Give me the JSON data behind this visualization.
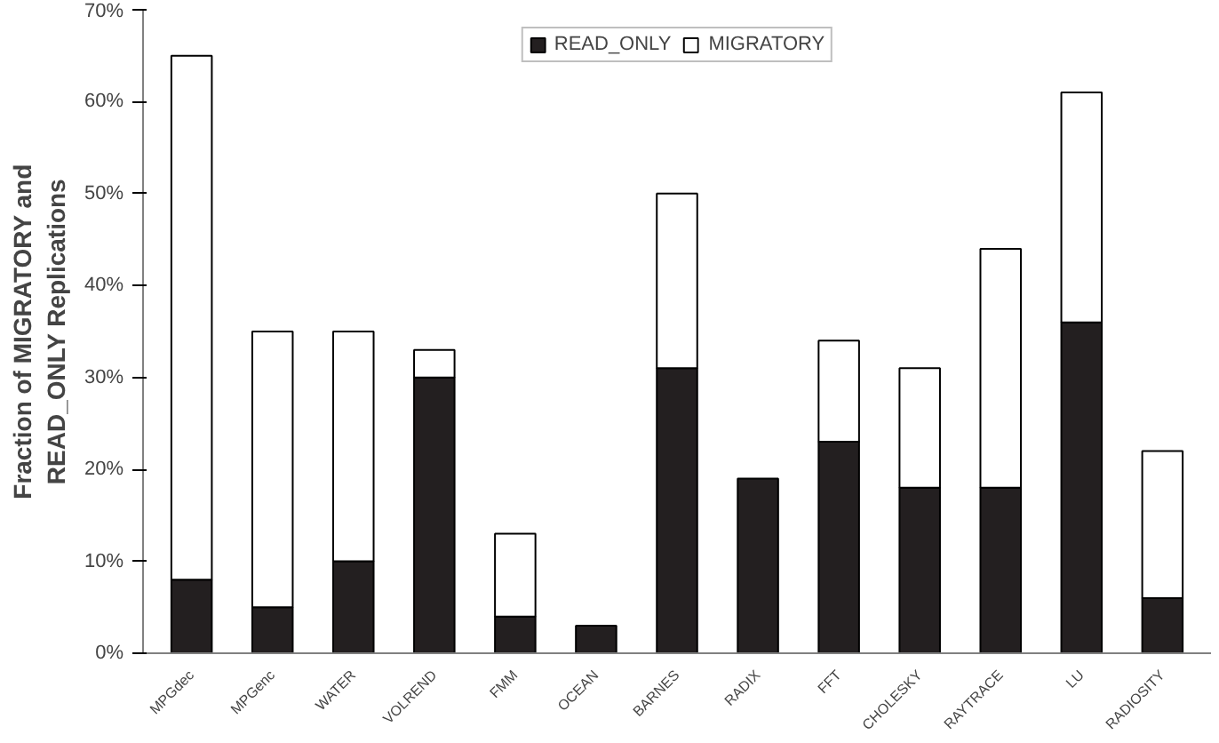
{
  "chart_data": {
    "type": "bar",
    "stacked": true,
    "ylabel": "Fraction of MIGRATORY and READ_ONLY Replications",
    "categories": [
      "MPGdec",
      "MPGenc",
      "WATER",
      "VOLREND",
      "FMM",
      "OCEAN",
      "BARNES",
      "RADIX",
      "FFT",
      "CHOLESKY",
      "RAYTRACE",
      "LU",
      "RADIOSITY"
    ],
    "series": [
      {
        "name": "READ_ONLY",
        "color": "#231f20",
        "values": [
          8,
          5,
          10,
          30,
          4,
          3,
          31,
          19,
          23,
          18,
          18,
          36,
          6
        ]
      },
      {
        "name": "MIGRATORY",
        "color": "#ffffff",
        "values": [
          57,
          30,
          25,
          3,
          9,
          0,
          19,
          0,
          11,
          13,
          26,
          25,
          16
        ]
      }
    ],
    "ylim": [
      0,
      70
    ],
    "yticks": [
      {
        "value": 0,
        "label": "0%"
      },
      {
        "value": 10,
        "label": "10%"
      },
      {
        "value": 20,
        "label": "20%"
      },
      {
        "value": 30,
        "label": "30%"
      },
      {
        "value": 40,
        "label": "40%"
      },
      {
        "value": 50,
        "label": "50%"
      },
      {
        "value": 60,
        "label": "60%"
      },
      {
        "value": 70,
        "label": "70%"
      }
    ],
    "grid": false,
    "legend": "top"
  }
}
